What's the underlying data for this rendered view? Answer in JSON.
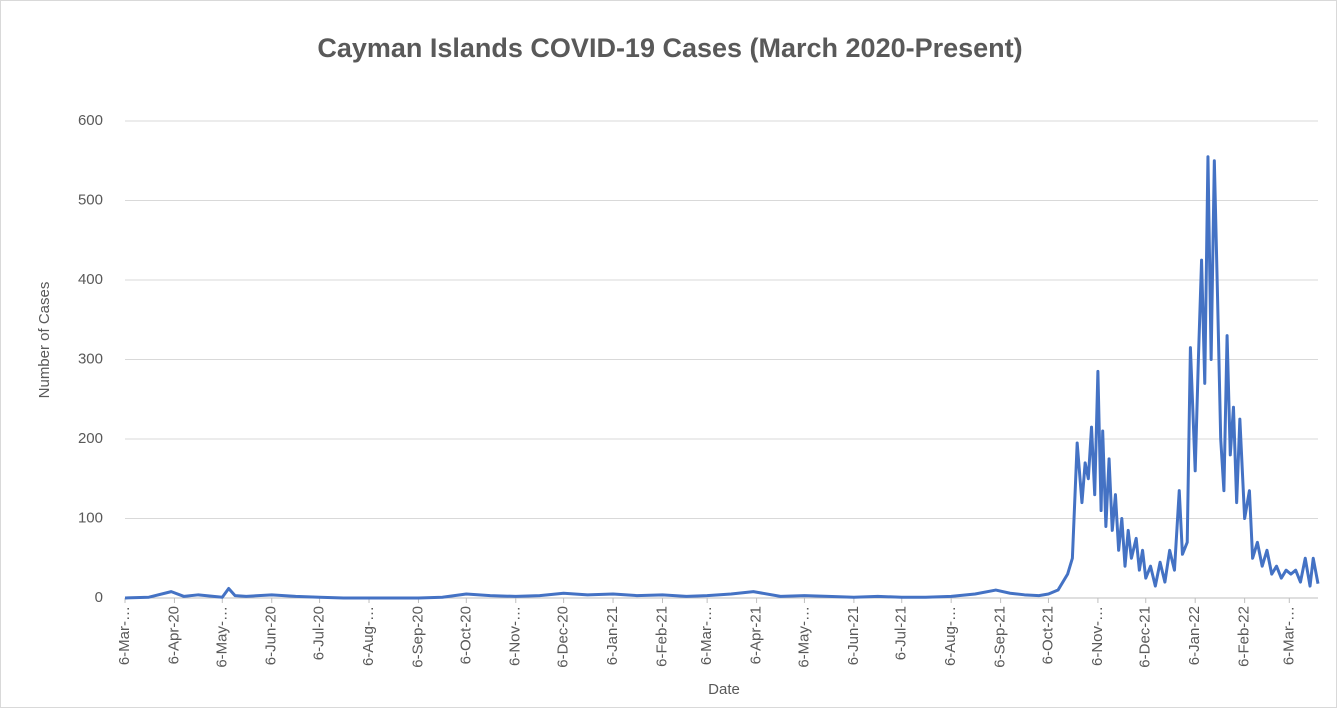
{
  "chart_data": {
    "type": "line",
    "title": "Cayman Islands COVID-19 Cases (March 2020-Present)",
    "x_label": "Date",
    "y_label": "Number of Cases",
    "color": "#4472c4",
    "grid": true,
    "x": [
      "6-Mar-20",
      "21-Mar-20",
      "4-Apr-20",
      "12-Apr-20",
      "21-Apr-20",
      "6-May-20",
      "10-May-20",
      "14-May-20",
      "21-May-20",
      "6-Jun-20",
      "21-Jun-20",
      "6-Jul-20",
      "21-Jul-20",
      "6-Aug-20",
      "21-Aug-20",
      "6-Sep-20",
      "21-Sep-20",
      "6-Oct-20",
      "21-Oct-20",
      "6-Nov-20",
      "21-Nov-20",
      "6-Dec-20",
      "21-Dec-20",
      "6-Jan-21",
      "21-Jan-21",
      "6-Feb-21",
      "21-Feb-21",
      "6-Mar-21",
      "21-Mar-21",
      "4-Apr-21",
      "21-Apr-21",
      "6-May-21",
      "21-May-21",
      "6-Jun-21",
      "21-Jun-21",
      "6-Jul-21",
      "21-Jul-21",
      "6-Aug-21",
      "21-Aug-21",
      "3-Sep-21",
      "12-Sep-21",
      "21-Sep-21",
      "30-Sep-21",
      "6-Oct-21",
      "12-Oct-21",
      "18-Oct-21",
      "21-Oct-21",
      "24-Oct-21",
      "27-Oct-21",
      "29-Oct-21",
      "31-Oct-21",
      "2-Nov-21",
      "4-Nov-21",
      "6-Nov-21",
      "8-Nov-21",
      "9-Nov-21",
      "11-Nov-21",
      "13-Nov-21",
      "15-Nov-21",
      "17-Nov-21",
      "19-Nov-21",
      "21-Nov-21",
      "23-Nov-21",
      "25-Nov-21",
      "27-Nov-21",
      "30-Nov-21",
      "2-Dec-21",
      "4-Dec-21",
      "6-Dec-21",
      "9-Dec-21",
      "12-Dec-21",
      "15-Dec-21",
      "18-Dec-21",
      "21-Dec-21",
      "24-Dec-21",
      "27-Dec-21",
      "29-Dec-21",
      "1-Jan-22",
      "3-Jan-22",
      "6-Jan-22",
      "8-Jan-22",
      "10-Jan-22",
      "12-Jan-22",
      "14-Jan-22",
      "16-Jan-22",
      "18-Jan-22",
      "20-Jan-22",
      "22-Jan-22",
      "24-Jan-22",
      "26-Jan-22",
      "28-Jan-22",
      "30-Jan-22",
      "1-Feb-22",
      "3-Feb-22",
      "6-Feb-22",
      "9-Feb-22",
      "11-Feb-22",
      "14-Feb-22",
      "17-Feb-22",
      "20-Feb-22",
      "23-Feb-22",
      "26-Feb-22",
      "1-Mar-22",
      "4-Mar-22",
      "7-Mar-22",
      "10-Mar-22",
      "13-Mar-22",
      "16-Mar-22",
      "19-Mar-22",
      "21-Mar-22",
      "24-Mar-22"
    ],
    "values": [
      0,
      1,
      8,
      2,
      4,
      1,
      12,
      3,
      2,
      4,
      2,
      1,
      0,
      0,
      0,
      0,
      1,
      5,
      3,
      2,
      3,
      6,
      4,
      5,
      3,
      4,
      2,
      3,
      5,
      8,
      2,
      3,
      2,
      1,
      2,
      1,
      1,
      2,
      5,
      10,
      6,
      4,
      3,
      5,
      10,
      30,
      50,
      195,
      120,
      170,
      150,
      215,
      130,
      285,
      110,
      210,
      90,
      175,
      85,
      130,
      60,
      100,
      40,
      85,
      50,
      75,
      35,
      60,
      25,
      40,
      15,
      45,
      20,
      60,
      35,
      135,
      55,
      70,
      315,
      160,
      300,
      425,
      270,
      555,
      300,
      550,
      380,
      200,
      135,
      330,
      180,
      240,
      120,
      225,
      100,
      135,
      50,
      70,
      40,
      60,
      30,
      40,
      25,
      35,
      30,
      35,
      20,
      50,
      15,
      50,
      18
    ],
    "xlim": [
      "6-Mar-20",
      "24-Mar-22"
    ],
    "xticks": [
      {
        "value": "6-Mar-20",
        "label": "6-Mar-…"
      },
      "6-Apr-20",
      {
        "value": "6-May-20",
        "label": "6-May-…"
      },
      "6-Jun-20",
      "6-Jul-20",
      {
        "value": "6-Aug-20",
        "label": "6-Aug-…"
      },
      "6-Sep-20",
      "6-Oct-20",
      {
        "value": "6-Nov-20",
        "label": "6-Nov-…"
      },
      "6-Dec-20",
      "6-Jan-21",
      "6-Feb-21",
      {
        "value": "6-Mar-21",
        "label": "6-Mar-…"
      },
      "6-Apr-21",
      {
        "value": "6-May-21",
        "label": "6-May-…"
      },
      "6-Jun-21",
      "6-Jul-21",
      {
        "value": "6-Aug-21",
        "label": "6-Aug-…"
      },
      "6-Sep-21",
      "6-Oct-21",
      {
        "value": "6-Nov-21",
        "label": "6-Nov-…"
      },
      "6-Dec-21",
      "6-Jan-22",
      "6-Feb-22",
      {
        "value": "6-Mar-22",
        "label": "6-Mar-…"
      }
    ],
    "ylim": [
      0,
      600
    ],
    "yticks": [
      0,
      100,
      200,
      300,
      400,
      500,
      600
    ]
  }
}
